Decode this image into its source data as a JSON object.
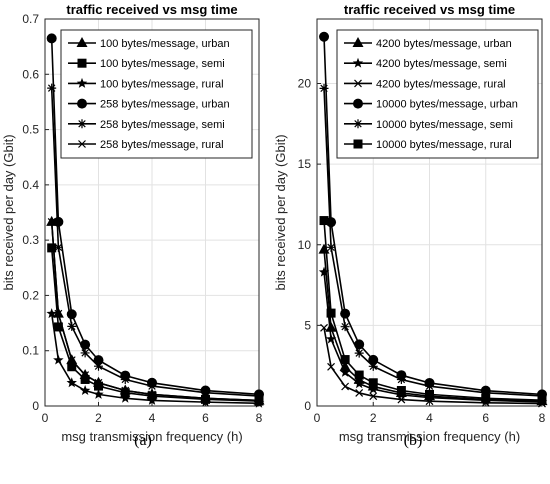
{
  "captions": [
    "(a)",
    "(b)"
  ],
  "chart_data": [
    {
      "type": "line",
      "title": "traffic received vs msg time",
      "xlabel": "msg transmission frequency (h)",
      "ylabel": "bits received per day (Gbit)",
      "xlim": [
        0,
        8
      ],
      "ylim": [
        0,
        0.7
      ],
      "xticks": [
        0,
        2,
        4,
        6,
        8
      ],
      "yticks": [
        0,
        0.1,
        0.2,
        0.3,
        0.4,
        0.5,
        0.6,
        0.7
      ],
      "grid": true,
      "legend_position": "top-right",
      "x": [
        0.25,
        0.5,
        1,
        1.5,
        2,
        3,
        4,
        6,
        8
      ],
      "series": [
        {
          "name": "100 bytes/message, urban",
          "marker": "triangle",
          "values": [
            0.333,
            0.167,
            0.083,
            0.056,
            0.042,
            0.028,
            0.021,
            0.014,
            0.01
          ]
        },
        {
          "name": "100 bytes/message, semi",
          "marker": "square",
          "values": [
            0.286,
            0.143,
            0.071,
            0.048,
            0.036,
            0.024,
            0.018,
            0.012,
            0.009
          ]
        },
        {
          "name": "100 bytes/message, rural",
          "marker": "star",
          "values": [
            0.167,
            0.083,
            0.042,
            0.028,
            0.021,
            0.014,
            0.01,
            0.007,
            0.005
          ]
        },
        {
          "name": "258 bytes/message, urban",
          "marker": "circle",
          "values": [
            0.665,
            0.333,
            0.166,
            0.111,
            0.083,
            0.055,
            0.042,
            0.028,
            0.021
          ]
        },
        {
          "name": "258 bytes/message, semi",
          "marker": "asterisk",
          "values": [
            0.575,
            0.287,
            0.144,
            0.096,
            0.072,
            0.048,
            0.036,
            0.024,
            0.018
          ]
        },
        {
          "name": "258 bytes/message, rural",
          "marker": "x",
          "values": [
            0.333,
            0.167,
            0.083,
            0.056,
            0.042,
            0.028,
            0.021,
            0.014,
            0.01
          ]
        }
      ]
    },
    {
      "type": "line",
      "title": "traffic received vs msg time",
      "xlabel": "msg transmission frequency (h)",
      "ylabel": "bits received per day (Gbit)",
      "xlim": [
        0,
        8
      ],
      "ylim": [
        0,
        24
      ],
      "xticks": [
        0,
        2,
        4,
        6,
        8
      ],
      "yticks": [
        0,
        5,
        10,
        15,
        20
      ],
      "grid": true,
      "legend_position": "top-right",
      "x": [
        0.25,
        0.5,
        1,
        1.5,
        2,
        3,
        4,
        6,
        8
      ],
      "series": [
        {
          "name": "4200 bytes/message, urban",
          "marker": "triangle",
          "values": [
            9.7,
            4.85,
            2.43,
            1.62,
            1.21,
            0.81,
            0.61,
            0.4,
            0.3
          ]
        },
        {
          "name": "4200 bytes/message, semi",
          "marker": "star",
          "values": [
            8.3,
            4.15,
            2.08,
            1.38,
            1.04,
            0.69,
            0.52,
            0.35,
            0.26
          ]
        },
        {
          "name": "4200 bytes/message, rural",
          "marker": "x",
          "values": [
            4.85,
            2.43,
            1.21,
            0.81,
            0.61,
            0.4,
            0.3,
            0.2,
            0.15
          ]
        },
        {
          "name": "10000 bytes/message, urban",
          "marker": "circle",
          "values": [
            22.9,
            11.4,
            5.73,
            3.82,
            2.86,
            1.91,
            1.43,
            0.95,
            0.72
          ]
        },
        {
          "name": "10000 bytes/message, semi",
          "marker": "asterisk",
          "values": [
            19.7,
            9.84,
            4.92,
            3.28,
            2.46,
            1.64,
            1.23,
            0.82,
            0.62
          ]
        },
        {
          "name": "10000 bytes/message, rural",
          "marker": "square",
          "values": [
            11.5,
            5.76,
            2.88,
            1.92,
            1.44,
            0.96,
            0.72,
            0.48,
            0.36
          ]
        }
      ]
    }
  ]
}
